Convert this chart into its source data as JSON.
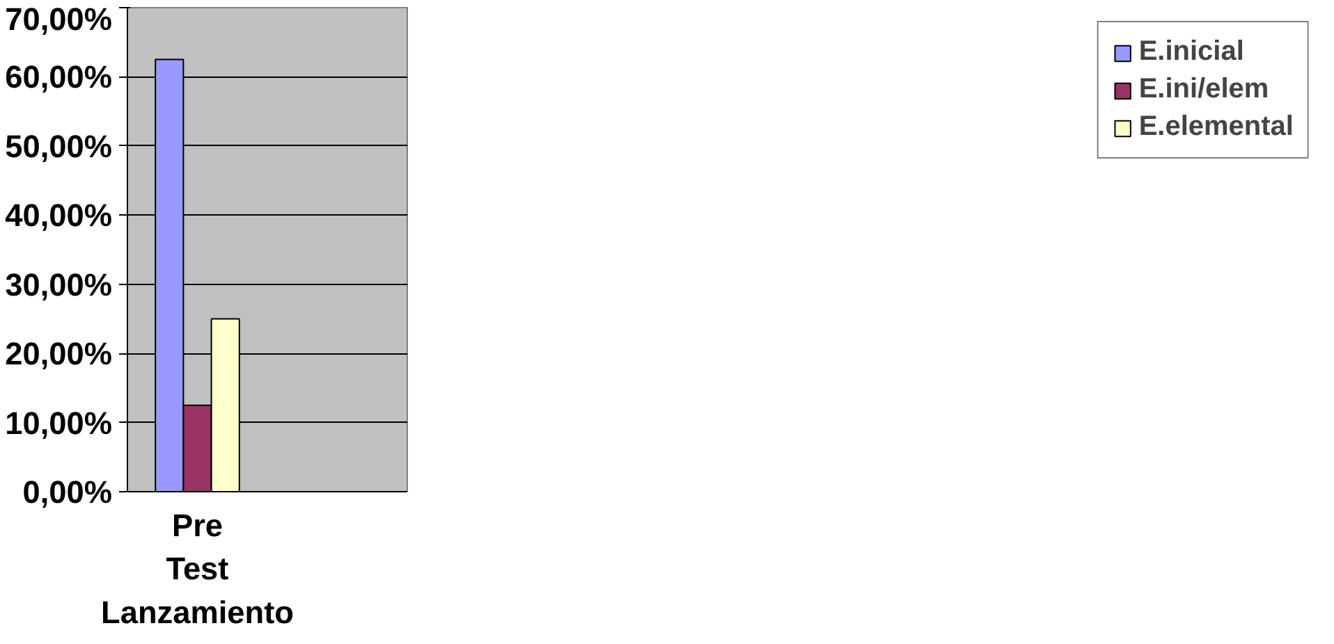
{
  "chart_data": {
    "type": "bar",
    "categories": [
      "Pre Test Lanzamiento",
      null
    ],
    "series": [
      {
        "name": "E.inicial",
        "color": "#9999ff",
        "values": [
          62.5,
          null
        ]
      },
      {
        "name": "E.ini/elem",
        "color": "#993366",
        "values": [
          12.5,
          null
        ]
      },
      {
        "name": "E.elemental",
        "color": "#ffffcc",
        "values": [
          25,
          null
        ]
      }
    ],
    "ylim": [
      0,
      70
    ],
    "yticks": [
      {
        "value": 0,
        "label": "0,00%"
      },
      {
        "value": 10,
        "label": "10,00%"
      },
      {
        "value": 20,
        "label": "20,00%"
      },
      {
        "value": 30,
        "label": "30,00%"
      },
      {
        "value": 40,
        "label": "40,00%"
      },
      {
        "value": 50,
        "label": "50,00%"
      },
      {
        "value": 60,
        "label": "60,00%"
      },
      {
        "value": 70,
        "label": "70,00%"
      }
    ],
    "grid": "y",
    "legend": "right"
  }
}
